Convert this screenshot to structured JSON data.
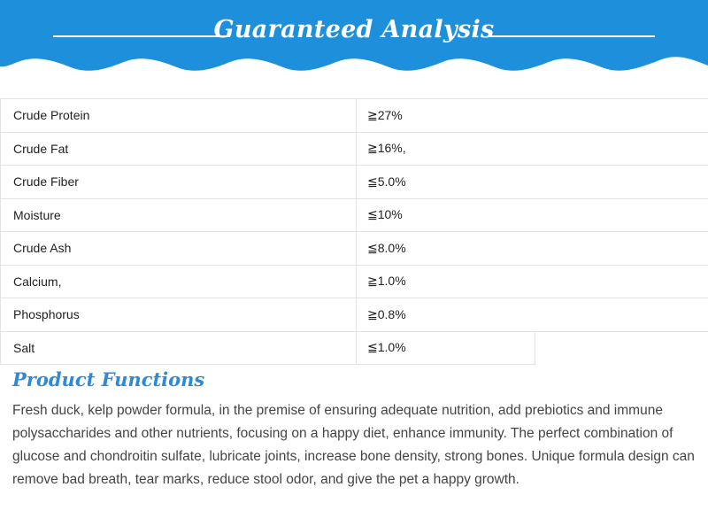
{
  "banner": {
    "title": "Guaranteed Analysis",
    "color": "#1d8fdb"
  },
  "analysis": {
    "rows": [
      {
        "name": "Crude Protein",
        "value": "≧27%"
      },
      {
        "name": "Crude Fat",
        "value": "≧16%,"
      },
      {
        "name": "Crude Fiber",
        "value": "≦5.0%"
      },
      {
        "name": "Moisture",
        "value": "≦10%"
      },
      {
        "name": "Crude Ash",
        "value": "≦8.0%"
      },
      {
        "name": "Calcium,",
        "value": "≧1.0%"
      },
      {
        "name": "Phosphorus",
        "value": "≧0.8%"
      },
      {
        "name": "Salt",
        "value": "≦1.0%"
      }
    ]
  },
  "product_functions": {
    "title": "Product Functions",
    "title_color": "#2e8ad8",
    "body": "Fresh duck, kelp powder formula, in the premise of ensuring adequate nutrition, add prebiotics and immune polysaccharides and other nutrients, focusing on a happy diet, enhance immunity. The perfect combination of glucose and chondroitin sulfate, lubricate joints, increase bone density, strong bones. Unique formula design can remove bad breath, tear marks, reduce stool odor, and give the pet a happy growth."
  }
}
